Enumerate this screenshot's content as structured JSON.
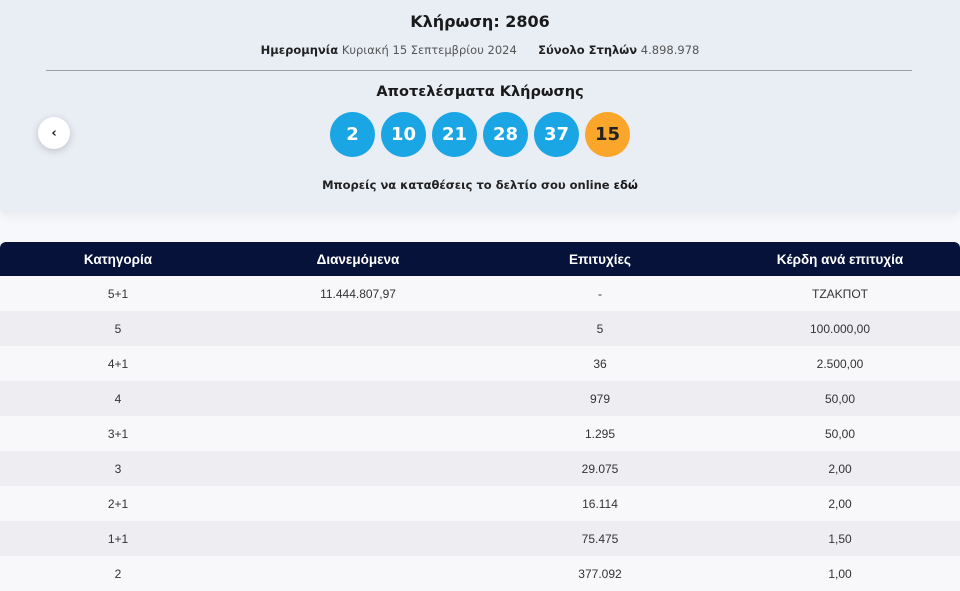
{
  "draw": {
    "title": "Κλήρωση: 2806",
    "date_label": "Ημερομηνία",
    "date_value": "Κυριακή 15 Σεπτεμβρίου 2024",
    "columns_label": "Σύνολο Στηλών",
    "columns_value": "4.898.978",
    "results_title": "Αποτελέσματα Κλήρωσης",
    "numbers": [
      "2",
      "10",
      "21",
      "28",
      "37"
    ],
    "bonus": "15",
    "online_text": "Μπορείς να καταθέσεις το δελτίο σου online",
    "online_link": "εδώ",
    "prev_icon": "chevron-left-icon",
    "colors": {
      "ball": "#1aa6e4",
      "bonus": "#f9a62b",
      "header": "#06123a"
    }
  },
  "table": {
    "headers": [
      "Κατηγορία",
      "Διανεμόμενα",
      "Επιτυχίες",
      "Κέρδη ανά επιτυχία"
    ],
    "rows": [
      [
        "5+1",
        "11.444.807,97",
        "-",
        "ΤΖΑΚΠΟΤ"
      ],
      [
        "5",
        "",
        "5",
        "100.000,00"
      ],
      [
        "4+1",
        "",
        "36",
        "2.500,00"
      ],
      [
        "4",
        "",
        "979",
        "50,00"
      ],
      [
        "3+1",
        "",
        "1.295",
        "50,00"
      ],
      [
        "3",
        "",
        "29.075",
        "2,00"
      ],
      [
        "2+1",
        "",
        "16.114",
        "2,00"
      ],
      [
        "1+1",
        "",
        "75.475",
        "1,50"
      ],
      [
        "2",
        "",
        "377.092",
        "1,00"
      ]
    ]
  }
}
